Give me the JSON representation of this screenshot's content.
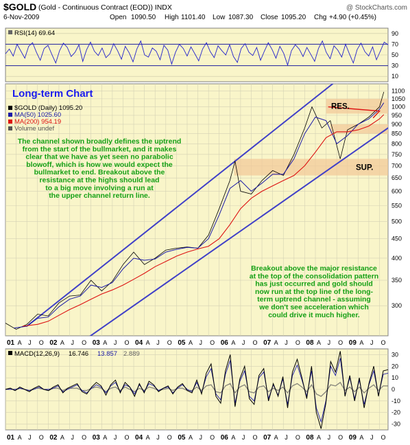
{
  "header": {
    "symbol": "$GOLD",
    "description": "(Gold - Continuous Contract (EOD)) INDX",
    "copyright": "@ StockCharts.com",
    "date": "6-Nov-2009",
    "open_label": "Open",
    "open": "1090.50",
    "high_label": "High",
    "high": "1101.40",
    "low_label": "Low",
    "low": "1087.30",
    "close_label": "Close",
    "close": "1095.20",
    "chg_label": "Chg",
    "chg": "+4.90 (+0.45%)"
  },
  "chart_data": [
    {
      "type": "line",
      "panel": "rsi",
      "title": "RSI(14) 69.64",
      "ylim": [
        0,
        100
      ],
      "yticks": [
        10,
        30,
        50,
        70,
        90
      ],
      "reference_lines": [
        30,
        70
      ],
      "series": [
        {
          "values": [
            52,
            61,
            48,
            70,
            57,
            44,
            66,
            73,
            55,
            40,
            62,
            68,
            51,
            35,
            58,
            72,
            64,
            47,
            55,
            69,
            38,
            60,
            74,
            57,
            49,
            63,
            45,
            52,
            71,
            58,
            42,
            66,
            54,
            37,
            61,
            76,
            50,
            46,
            63,
            57,
            41,
            68,
            59,
            33,
            55,
            70,
            62,
            48,
            65,
            52,
            39,
            61,
            73,
            56,
            45,
            67,
            58,
            50,
            69,
            47,
            36,
            62,
            71,
            55,
            49,
            64,
            40,
            57,
            73,
            60,
            44,
            66,
            53,
            31,
            58,
            69,
            61,
            47,
            64,
            51,
            38,
            62,
            76,
            55,
            43,
            67,
            59,
            46,
            70,
            52,
            35,
            60,
            72,
            56,
            48,
            65,
            41,
            57,
            74,
            69
          ]
        }
      ]
    },
    {
      "type": "line",
      "panel": "price",
      "title": "$GOLD (Daily) 1095.20",
      "scale": "log",
      "ylim": [
        250,
        1150
      ],
      "yticks": [
        300,
        350,
        400,
        450,
        500,
        550,
        600,
        650,
        700,
        750,
        800,
        850,
        900,
        950,
        1000,
        1050,
        1100
      ],
      "x_tick_labels": [
        "01",
        "A",
        "J",
        "O",
        "02",
        "A",
        "J",
        "O",
        "03",
        "A",
        "J",
        "O",
        "04",
        "A",
        "J",
        "O",
        "05",
        "A",
        "J",
        "O",
        "06",
        "A",
        "J",
        "O",
        "07",
        "A",
        "J",
        "O",
        "08",
        "A",
        "J",
        "O",
        "09",
        "A",
        "J",
        "O"
      ],
      "legend": [
        {
          "label": "$GOLD (Daily) 1095.20",
          "color": "#000000"
        },
        {
          "label": "MA(50) 1025.60",
          "color": "#1a1aa8"
        },
        {
          "label": "MA(200) 954.19",
          "color": "#dd1111"
        },
        {
          "label": "Volume undef",
          "color": "#555555"
        }
      ],
      "series": [
        {
          "name": "$GOLD (Daily) 1095.20",
          "color": "#000000",
          "x": [
            2001.0,
            2001.25,
            2001.5,
            2001.75,
            2002.0,
            2002.25,
            2002.5,
            2002.75,
            2003.0,
            2003.25,
            2003.5,
            2003.75,
            2004.0,
            2004.25,
            2004.5,
            2004.75,
            2005.0,
            2005.25,
            2005.5,
            2005.75,
            2006.0,
            2006.25,
            2006.37,
            2006.5,
            2006.75,
            2007.0,
            2007.25,
            2007.5,
            2007.75,
            2008.0,
            2008.17,
            2008.4,
            2008.6,
            2008.83,
            2009.0,
            2009.25,
            2009.5,
            2009.75,
            2009.85
          ],
          "y": [
            270,
            260,
            268,
            285,
            282,
            305,
            318,
            320,
            350,
            328,
            348,
            385,
            415,
            385,
            400,
            420,
            425,
            428,
            425,
            460,
            540,
            640,
            720,
            600,
            590,
            640,
            680,
            660,
            750,
            880,
            1000,
            880,
            920,
            730,
            870,
            900,
            940,
            1000,
            1095
          ]
        },
        {
          "name": "MA(50) 1025.60",
          "color": "#1a1aa8",
          "x": [
            2001.2,
            2001.5,
            2001.75,
            2002.0,
            2002.25,
            2002.5,
            2002.75,
            2003.0,
            2003.25,
            2003.5,
            2003.75,
            2004.0,
            2004.25,
            2004.5,
            2004.75,
            2005.0,
            2005.25,
            2005.5,
            2005.75,
            2006.0,
            2006.25,
            2006.5,
            2006.75,
            2007.0,
            2007.25,
            2007.5,
            2007.75,
            2008.0,
            2008.25,
            2008.5,
            2008.75,
            2009.0,
            2009.25,
            2009.5,
            2009.75,
            2009.85
          ],
          "y": [
            262,
            265,
            278,
            280,
            298,
            312,
            318,
            340,
            335,
            345,
            375,
            400,
            395,
            398,
            415,
            422,
            427,
            425,
            450,
            520,
            610,
            640,
            600,
            630,
            665,
            665,
            730,
            850,
            940,
            920,
            800,
            840,
            900,
            930,
            985,
            1025
          ]
        },
        {
          "name": "MA(200) 954.19",
          "color": "#dd1111",
          "x": [
            2001.4,
            2001.75,
            2002.0,
            2002.25,
            2002.5,
            2002.75,
            2003.0,
            2003.25,
            2003.5,
            2003.75,
            2004.0,
            2004.25,
            2004.5,
            2004.75,
            2005.0,
            2005.25,
            2005.5,
            2005.75,
            2006.0,
            2006.25,
            2006.5,
            2006.75,
            2007.0,
            2007.25,
            2007.5,
            2007.75,
            2008.0,
            2008.25,
            2008.5,
            2008.75,
            2009.0,
            2009.25,
            2009.5,
            2009.75,
            2009.85
          ],
          "y": [
            265,
            268,
            273,
            283,
            293,
            302,
            312,
            322,
            330,
            340,
            352,
            365,
            380,
            392,
            405,
            415,
            423,
            430,
            450,
            490,
            540,
            575,
            600,
            620,
            640,
            660,
            700,
            760,
            830,
            860,
            860,
            870,
            890,
            930,
            954
          ]
        }
      ],
      "channel_lines": [
        {
          "name": "upper",
          "x": [
            2001.5,
            2009.95
          ],
          "y": [
            265,
            1500
          ]
        },
        {
          "name": "lower",
          "x": [
            2002.6,
            2009.95
          ],
          "y": [
            233,
            880
          ]
        }
      ],
      "zones": [
        {
          "label": "RES.",
          "y_range": [
            960,
            1050
          ],
          "x_range": [
            2008.5,
            2009.95
          ]
        },
        {
          "label": "SUP.",
          "y_range": [
            660,
            730
          ],
          "x_range": [
            2006.35,
            2009.95
          ]
        },
        {
          "label": "",
          "y_range": [
            850,
            900
          ],
          "x_range": [
            2008.6,
            2009.95
          ]
        }
      ],
      "annotations": {
        "title": "Long-term Chart",
        "left": [
          "The channel shown broadly defines the uptrend",
          "from the start of the bullmarket, and it makes",
          "clear that we have as yet seen no parabolic",
          "blowoff, which is how we would expect the",
          "bullmarket to end. Breakout above the",
          "resistance at the highs should lead",
          "to a big move involving a run at",
          "the upper channel return line."
        ],
        "right": [
          "Breakout above the major resistance",
          "at the top of the consolidation pattern",
          "has just occurred and gold should",
          "now run at the top line of the long-",
          "term uptrend channel - assuming",
          "we don't see acceleration which",
          "could drive it much higher."
        ]
      }
    },
    {
      "type": "line",
      "panel": "macd",
      "title": "MACD(12,26,9)",
      "legend": [
        {
          "label": "16.746",
          "color": "#000000"
        },
        {
          "label": "13.857",
          "color": "#1a1aa8"
        },
        {
          "label": "2.889",
          "color": "#666666"
        }
      ],
      "ylim": [
        -35,
        35
      ],
      "yticks": [
        -30,
        -20,
        -10,
        0,
        10,
        20,
        30
      ],
      "x_tick_labels": [
        "01",
        "A",
        "J",
        "O",
        "02",
        "A",
        "J",
        "O",
        "03",
        "A",
        "J",
        "O",
        "04",
        "A",
        "J",
        "O",
        "05",
        "A",
        "J",
        "O",
        "06",
        "A",
        "J",
        "O",
        "07",
        "A",
        "J",
        "O",
        "08",
        "A",
        "J",
        "O",
        "09",
        "A",
        "J",
        "O"
      ],
      "series": [
        {
          "name": "16.746",
          "color": "#000000",
          "values": [
            0,
            1,
            -1,
            2,
            0,
            -2,
            1,
            3,
            0,
            -1,
            2,
            4,
            -3,
            1,
            3,
            5,
            -2,
            -4,
            2,
            6,
            3,
            -5,
            4,
            8,
            -3,
            6,
            2,
            -6,
            5,
            -3,
            7,
            4,
            -2,
            1,
            3,
            -4,
            2,
            5,
            -1,
            -3,
            8,
            -4,
            14,
            22,
            -6,
            -12,
            16,
            30,
            -15,
            9,
            20,
            -8,
            -13,
            12,
            18,
            -10,
            5,
            -6,
            11,
            -16,
            15,
            26,
            10,
            -8,
            20,
            -20,
            -34,
            -12,
            24,
            15,
            33,
            -6,
            12,
            -10,
            10,
            -16,
            5,
            20,
            -6,
            16,
            17
          ]
        },
        {
          "name": "13.857",
          "color": "#1a1aa8",
          "values": [
            0,
            0,
            0,
            1,
            0,
            -1,
            0,
            2,
            0,
            0,
            1,
            3,
            -2,
            0,
            2,
            4,
            -1,
            -3,
            1,
            4,
            2,
            -3,
            3,
            6,
            -2,
            4,
            2,
            -4,
            4,
            -2,
            5,
            3,
            -1,
            1,
            2,
            -3,
            1,
            4,
            0,
            -2,
            6,
            -3,
            11,
            18,
            -4,
            -9,
            13,
            25,
            -12,
            7,
            16,
            -6,
            -10,
            10,
            15,
            -8,
            4,
            -5,
            9,
            -13,
            12,
            21,
            8,
            -6,
            16,
            -16,
            -28,
            -10,
            20,
            12,
            27,
            -5,
            10,
            -8,
            8,
            -13,
            4,
            16,
            -5,
            13,
            14
          ]
        },
        {
          "name": "2.889",
          "color": "#666666",
          "values": [
            0,
            1,
            -1,
            1,
            0,
            -1,
            1,
            1,
            0,
            -1,
            1,
            1,
            -1,
            1,
            1,
            1,
            -1,
            -1,
            1,
            2,
            1,
            -2,
            1,
            2,
            -1,
            2,
            0,
            -2,
            1,
            -1,
            2,
            1,
            -1,
            0,
            1,
            -1,
            1,
            1,
            -1,
            -1,
            2,
            -1,
            3,
            4,
            -2,
            -3,
            3,
            5,
            -3,
            2,
            4,
            -2,
            -3,
            2,
            3,
            -2,
            1,
            -1,
            2,
            -3,
            3,
            5,
            2,
            -2,
            4,
            -4,
            -6,
            -2,
            4,
            3,
            6,
            -1,
            2,
            -2,
            2,
            -3,
            1,
            4,
            -1,
            3,
            3
          ]
        }
      ]
    }
  ]
}
